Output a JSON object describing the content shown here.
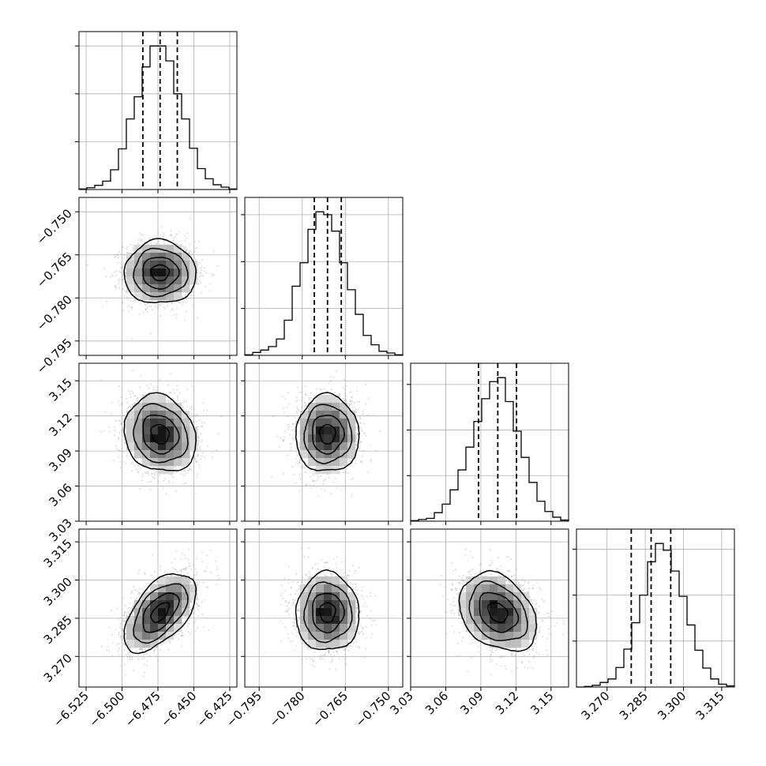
{
  "chart_data": {
    "type": "corner",
    "parameters": [
      {
        "name": "",
        "range": [
          -6.53,
          -6.42
        ],
        "ticks": [
          "−6.525",
          "−6.500",
          "−6.475",
          "−6.450",
          "−6.425"
        ],
        "tick_values": [
          -6.525,
          -6.5,
          -6.475,
          -6.45,
          -6.425
        ],
        "quantiles": [
          -6.4855,
          -6.4735,
          -6.4615
        ],
        "histogram": {
          "edges_start": -6.53,
          "bin_width": 0.0055,
          "counts": [
            1,
            3,
            7,
            14,
            33,
            68,
            118,
            155,
            205,
            240,
            240,
            215,
            160,
            118,
            69,
            35,
            18,
            8,
            4,
            1
          ]
        }
      },
      {
        "name": "",
        "range": [
          -0.8,
          -0.745
        ],
        "ticks": [
          "−0.795",
          "−0.780",
          "−0.765",
          "−0.750"
        ],
        "tick_values": [
          -0.795,
          -0.78,
          -0.765,
          -0.75
        ],
        "quantiles": [
          -0.7758,
          -0.7712,
          -0.7664
        ],
        "histogram": {
          "edges_start": -0.8,
          "bin_width": 0.00275,
          "counts": [
            1,
            5,
            9,
            15,
            28,
            60,
            118,
            158,
            215,
            245,
            240,
            212,
            158,
            112,
            70,
            34,
            18,
            7,
            4,
            1
          ]
        }
      },
      {
        "name": "",
        "range": [
          3.03,
          3.165
        ],
        "ticks": [
          "3.03",
          "3.06",
          "3.09",
          "3.12",
          "3.15"
        ],
        "tick_values": [
          3.03,
          3.06,
          3.09,
          3.12,
          3.15
        ],
        "quantiles": [
          3.088,
          3.1045,
          3.1205
        ],
        "histogram": {
          "edges_start": 3.03,
          "bin_width": 0.00675,
          "counts": [
            1,
            3,
            5,
            15,
            30,
            55,
            90,
            130,
            175,
            215,
            245,
            252,
            210,
            158,
            112,
            68,
            35,
            17,
            7,
            2
          ]
        }
      },
      {
        "name": "",
        "range": [
          3.258,
          3.32
        ],
        "ticks": [
          "3.270",
          "3.285",
          "3.300",
          "3.315"
        ],
        "tick_values": [
          3.27,
          3.285,
          3.3,
          3.315
        ],
        "quantiles": [
          3.2795,
          3.2873,
          3.295
        ],
        "histogram": {
          "edges_start": 3.258,
          "bin_width": 0.0031,
          "counts": [
            0,
            1,
            3,
            8,
            14,
            34,
            66,
            112,
            160,
            218,
            250,
            238,
            202,
            158,
            108,
            64,
            33,
            14,
            5,
            2
          ]
        }
      }
    ],
    "pairs": [
      {
        "x": 0,
        "y": 1,
        "mean": [
          -6.4735,
          -0.7712
        ],
        "std": [
          0.0125,
          0.0055
        ],
        "rho": 0.0
      },
      {
        "x": 0,
        "y": 2,
        "mean": [
          -6.4735,
          3.1045
        ],
        "std": [
          0.0125,
          0.0165
        ],
        "rho": -0.15
      },
      {
        "x": 1,
        "y": 2,
        "mean": [
          -0.7712,
          3.1045
        ],
        "std": [
          0.0055,
          0.0165
        ],
        "rho": 0.0
      },
      {
        "x": 0,
        "y": 3,
        "mean": [
          -6.4735,
          3.2873
        ],
        "std": [
          0.0125,
          0.0077
        ],
        "rho": 0.55
      },
      {
        "x": 1,
        "y": 3,
        "mean": [
          -0.7712,
          3.2873
        ],
        "std": [
          0.0055,
          0.0077
        ],
        "rho": 0.0
      },
      {
        "x": 2,
        "y": 3,
        "mean": [
          3.1045,
          3.2873
        ],
        "std": [
          0.0165,
          0.0077
        ],
        "rho": -0.3
      }
    ],
    "contour_levels_sigma": [
      0.5,
      1.0,
      1.5,
      2.0
    ],
    "grid": true,
    "colors": {
      "points": "#9e9e9e",
      "density": "#000000",
      "lines": "#000000",
      "grid": "#b0b0b0"
    }
  }
}
